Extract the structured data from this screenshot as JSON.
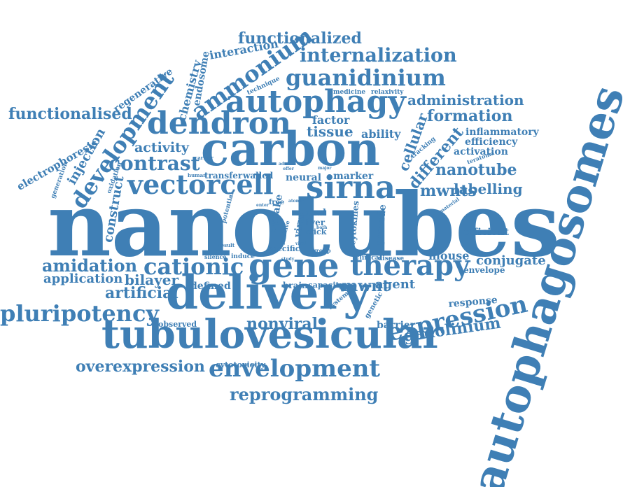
{
  "color": "#3f7fb5",
  "words": [
    "nanotubes",
    "autophagosomes",
    "carbon",
    "delivery",
    "tubulovesicular",
    "gene",
    "dendron",
    "vectorcell",
    "sirna",
    "autophagy",
    "therapy",
    "envelopment",
    "expression",
    "cationic",
    "pluripotency",
    "guanidinium",
    "internalization",
    "ammonium",
    "development",
    "functionalised",
    "functionalized",
    "amidation",
    "contrast",
    "reprogramming",
    "overexpression",
    "gadolinium",
    "nonviral",
    "mwnt",
    "mwnts",
    "labelling",
    "nanotube",
    "formation",
    "administration",
    "artificial",
    "bilayer",
    "application",
    "activity",
    "tissue",
    "factor",
    "ability",
    "cellular",
    "different",
    "chemistry",
    "endosome",
    "interaction",
    "regenerative",
    "electrophoresis",
    "injection",
    "construct",
    "conjugate",
    "mouse",
    "efficient",
    "inflammatory",
    "efficiency",
    "activation",
    "response",
    "envelope",
    "agent",
    "barrier",
    "cytotoxicity",
    "neural",
    "marker",
    "transfer",
    "walled",
    "dual",
    "liver",
    "click",
    "cytokines",
    "provide",
    "uptake",
    "virus",
    "defined",
    "observed",
    "brain",
    "capacity",
    "genetic",
    "system",
    "specific",
    "clinical",
    "disease",
    "group",
    "silence",
    "induce",
    "result",
    "potential",
    "positive",
    "oxidation",
    "generation",
    "human",
    "carrier",
    "technique",
    "medicine",
    "relaxivity",
    "tracking",
    "teratoma",
    "material",
    "free",
    "adult",
    "major",
    "viral",
    "study",
    "enter",
    "atomic",
    "offer",
    "both"
  ]
}
